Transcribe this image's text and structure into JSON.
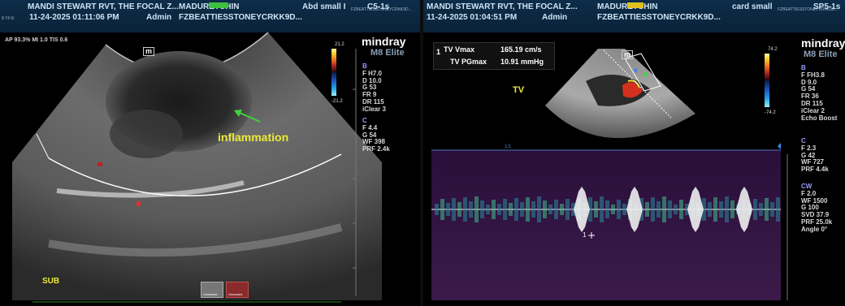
{
  "left": {
    "header": {
      "patient": "MANDI STEWART RVT, THE FOCAL Z...",
      "owner_a": "MADUR",
      "owner_b": "ETCHIN",
      "preset": "Abd small I",
      "probe_tag": "FZBEATTIESSTONEYCRKK9D...",
      "probe_prefix": "8.74 0/",
      "probe_code": "C5-1s",
      "datetime": "11-24-2025 01:11:06 PM",
      "user": "Admin",
      "id": "FZBEATTIESSTONEYCRKK9D...",
      "power": "AP 93.3%  MI 1.0  TIS 0.6"
    },
    "logo": "mindray",
    "model": "M8 Elite",
    "b_params": [
      "B",
      "F H7.0",
      "D 10.0",
      "G 53",
      "FR 9",
      "DR 115",
      "iClear 3"
    ],
    "c_params": [
      "C",
      "F 4.4",
      "G 54",
      "WF 398",
      "PRF 2.4k"
    ],
    "colorbar_top": "21.2",
    "colorbar_bottom": "-21.2",
    "annotation": "inflammation",
    "view_label": "SUB",
    "marker": "m",
    "thumb_labels": [
      "Unnamed",
      "Unnamed"
    ]
  },
  "right": {
    "header": {
      "patient": "MANDI STEWART RVT, THE FOCAL Z...",
      "owner_a": "MADUR",
      "owner_b": "ETCHIN",
      "preset": "card small",
      "probe_tag": "FZBEATTIESSTONEYCRKK9D...",
      "probe_code": "SP5-1s",
      "datetime": "11-24-2025 01:04:51 PM",
      "user": "Admin",
      "id": "FZBEATTIESSTONEYCRKK9D..."
    },
    "measure": {
      "index": "1",
      "vmax_label": "TV Vmax",
      "vmax_value": "165.19 cm/s",
      "pg_label": "TV PGmax",
      "pg_value": "10.91 mmHg"
    },
    "logo": "mindray",
    "model": "M8 Elite",
    "b_params": [
      "B",
      "F FH3.8",
      "D 9.0",
      "G 54",
      "FR 36",
      "DR 115",
      "iClear 2",
      "Echo Boost"
    ],
    "c_params": [
      "C",
      "F 2.3",
      "G 42",
      "WF 727",
      "PRF 4.4k"
    ],
    "cw_params": [
      "CW",
      "F 2.0",
      "WF 1500",
      "G 100",
      "SVD 37.9",
      "PRF 25.0k",
      "Angle 0°"
    ],
    "colorbar_top": "74.2",
    "colorbar_bottom": "-74.2",
    "view_label": "TV",
    "marker": "m",
    "sweep": "1/1",
    "cursor_label": "1"
  }
}
